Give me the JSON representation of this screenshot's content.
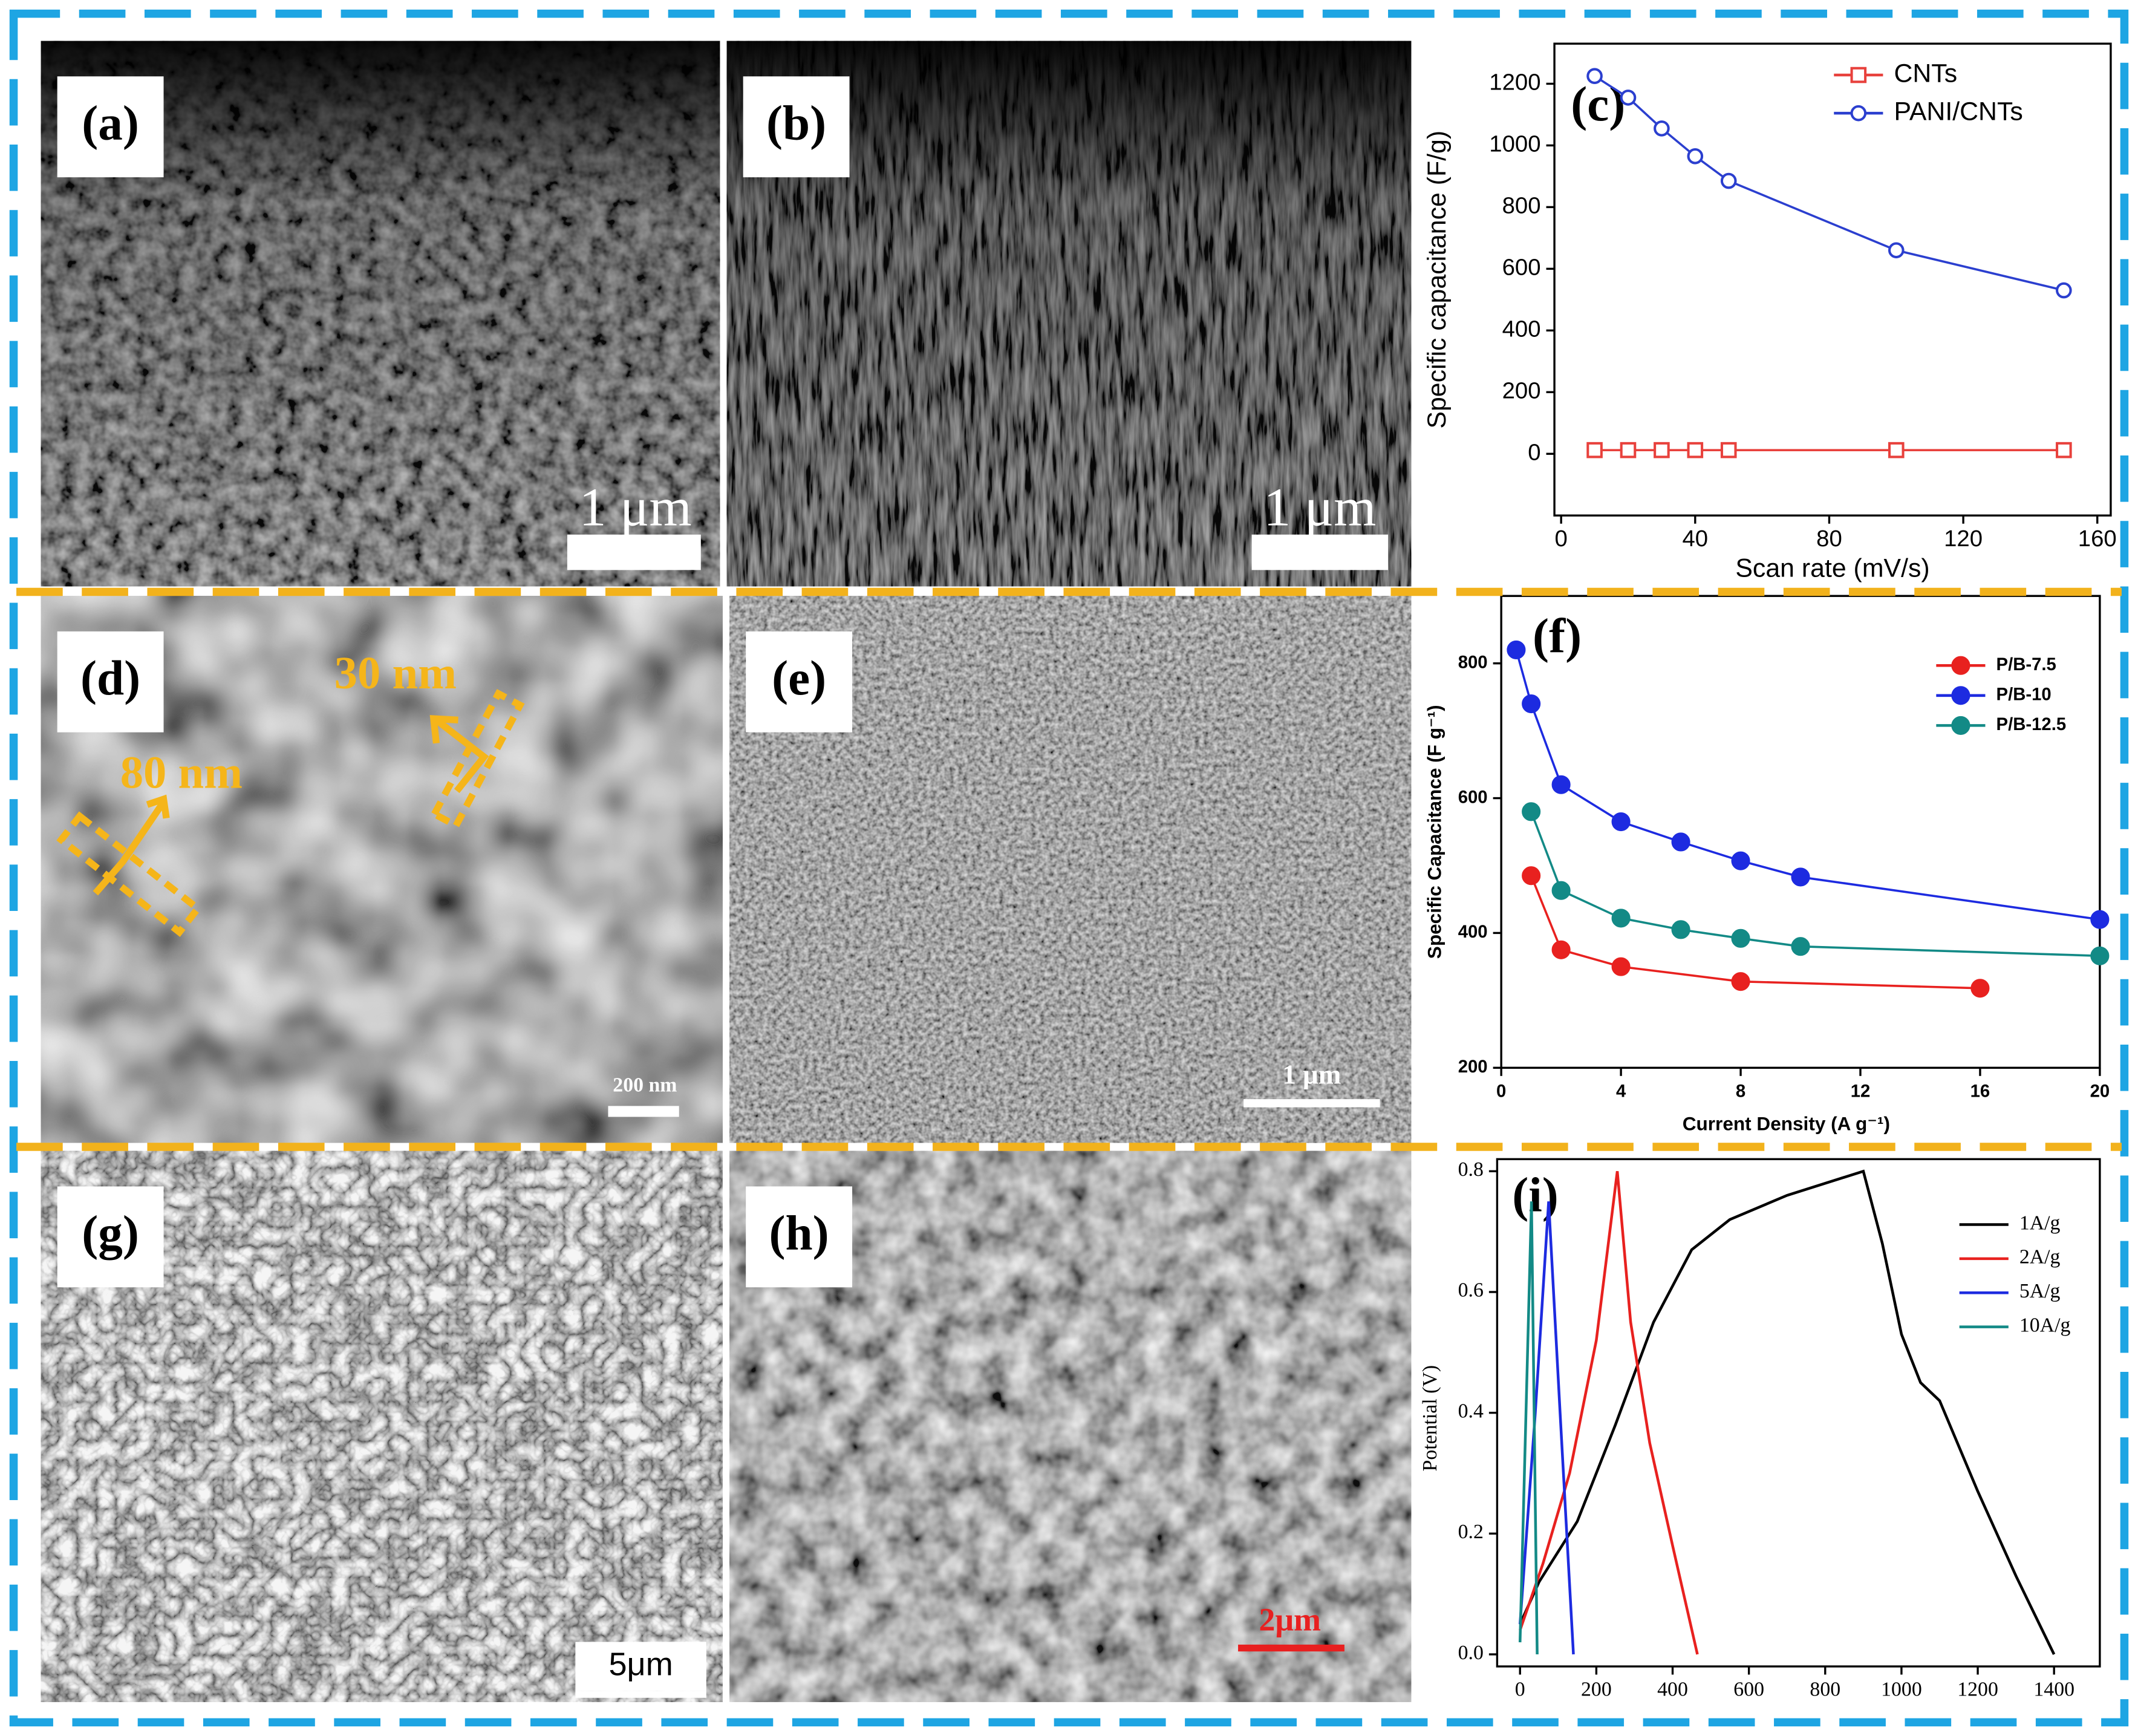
{
  "chart_data": [
    {
      "type": "line",
      "label": "(c)",
      "xlabel": "Scan rate (mV/s)",
      "ylabel": "Specific capacitance (F/g)",
      "x": [
        10,
        20,
        30,
        40,
        50,
        100,
        150
      ],
      "series": [
        {
          "name": "CNTs",
          "color": "#e8413c",
          "marker": "square",
          "values": [
            12,
            12,
            12,
            12,
            12,
            12,
            12
          ]
        },
        {
          "name": "PANI/CNTs",
          "color": "#2b3fcf",
          "marker": "circle",
          "values": [
            1225,
            1155,
            1055,
            965,
            885,
            660,
            530
          ]
        }
      ],
      "marker_fill": "open",
      "legend": "upper right",
      "xlim": [
        -2,
        164
      ],
      "xticks": [
        0,
        40,
        80,
        120,
        160
      ],
      "ylim": [
        -200,
        1330
      ],
      "yticks": [
        0,
        200,
        400,
        600,
        800,
        1000,
        1200
      ]
    },
    {
      "type": "line",
      "label": "(f)",
      "xlabel": "Current Density (A g⁻¹)",
      "ylabel": "Specific Capacitance (F g⁻¹)",
      "series": [
        {
          "name": "P/B-7.5",
          "color": "#e8211f",
          "marker": "circle",
          "x": [
            1,
            2,
            4,
            8,
            16
          ],
          "values": [
            485,
            375,
            350,
            328,
            318
          ]
        },
        {
          "name": "P/B-10",
          "color": "#1d2be0",
          "marker": "circle",
          "x": [
            0.5,
            1,
            2,
            4,
            6,
            8,
            10,
            20
          ],
          "values": [
            820,
            740,
            620,
            565,
            535,
            507,
            483,
            420
          ]
        },
        {
          "name": "P/B-12.5",
          "color": "#138a86",
          "marker": "circle",
          "x": [
            1,
            2,
            4,
            6,
            8,
            10,
            20
          ],
          "values": [
            580,
            463,
            422,
            405,
            392,
            380,
            366
          ]
        }
      ],
      "marker_fill": "filled",
      "legend": "upper right",
      "xlim": [
        0,
        20
      ],
      "xticks": [
        0,
        4,
        8,
        12,
        16,
        20
      ],
      "ylim": [
        200,
        900
      ],
      "yticks": [
        200,
        400,
        600,
        800
      ]
    },
    {
      "type": "line",
      "label": "(i)",
      "ylabel": "Potential (V)",
      "series": [
        {
          "name": "1A/g",
          "color": "#000000",
          "x": [
            0,
            50,
            150,
            250,
            350,
            450,
            550,
            700,
            900,
            950,
            1000,
            1050,
            1100,
            1200,
            1300,
            1400
          ],
          "values": [
            0.05,
            0.12,
            0.22,
            0.38,
            0.55,
            0.67,
            0.72,
            0.76,
            0.8,
            0.68,
            0.53,
            0.45,
            0.42,
            0.27,
            0.13,
            0
          ]
        },
        {
          "name": "2A/g",
          "color": "#e8211f",
          "x": [
            0,
            60,
            130,
            200,
            255,
            290,
            340,
            400,
            465
          ],
          "values": [
            0.04,
            0.15,
            0.3,
            0.52,
            0.8,
            0.55,
            0.35,
            0.18,
            0
          ]
        },
        {
          "name": "5A/g",
          "color": "#1d2be0",
          "x": [
            0,
            40,
            75,
            105,
            140
          ],
          "values": [
            0.05,
            0.4,
            0.75,
            0.4,
            0
          ]
        },
        {
          "name": "10A/g",
          "color": "#138a86",
          "x": [
            0,
            30,
            45
          ],
          "values": [
            0.02,
            0.75,
            0
          ]
        }
      ],
      "legend": "upper right",
      "xlim": [
        -60,
        1520
      ],
      "xticks": [
        0,
        200,
        400,
        600,
        800,
        1000,
        1200,
        1400
      ],
      "ylim": [
        -0.02,
        0.82
      ],
      "yticks": [
        {
          "value": 0,
          "label": "0.0"
        },
        0.2,
        0.4,
        0.6,
        0.8
      ]
    }
  ],
  "images": [
    {
      "label": "(a)",
      "scale_bar": "1 μm"
    },
    {
      "label": "(b)",
      "scale_bar": "1 μm"
    },
    {
      "label": "(d)",
      "scale_bar": "200 nm",
      "annotations": [
        "80 nm",
        "30 nm"
      ]
    },
    {
      "label": "(e)",
      "scale_bar": "1 μm"
    },
    {
      "label": "(g)",
      "scale_bar": "5μm"
    },
    {
      "label": "(h)",
      "scale_bar": "2μm"
    }
  ]
}
